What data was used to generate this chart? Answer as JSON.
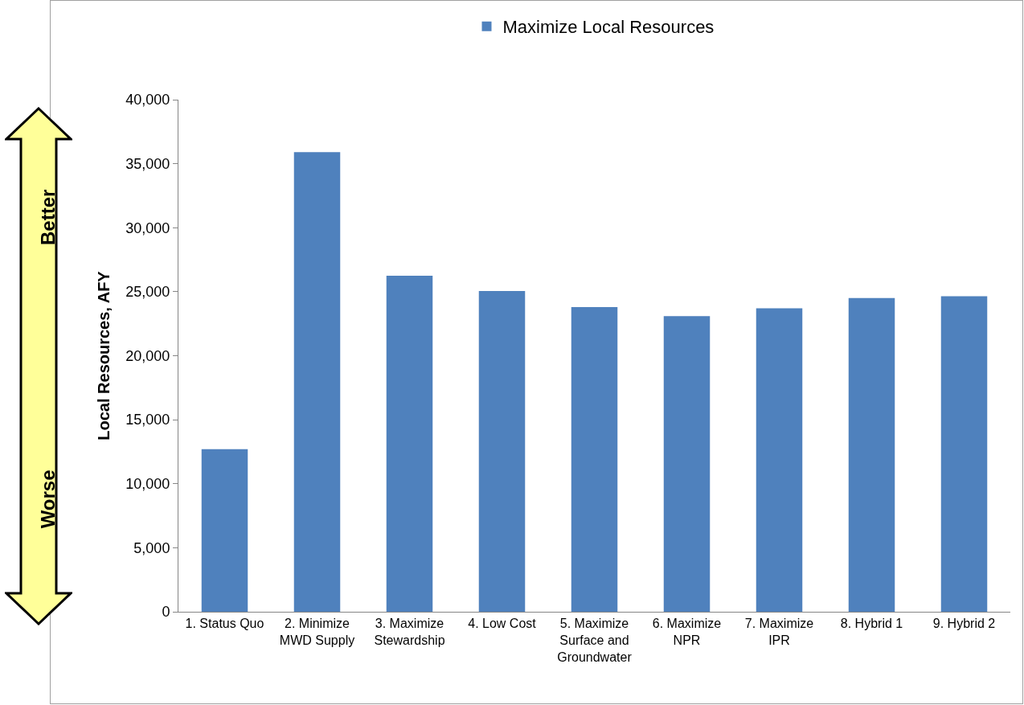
{
  "chart_data": {
    "type": "bar",
    "categories": [
      "1. Status Quo",
      "2. Minimize MWD Supply",
      "3. Maximize Stewardship",
      "4. Low Cost",
      "5. Maximize Surface and Groundwater",
      "6. Maximize NPR",
      "7. Maximize IPR",
      "8. Hybrid 1",
      "9. Hybrid 2"
    ],
    "series": [
      {
        "name": "Maximize Local Resources",
        "color": "#4f81bd",
        "values": [
          12700,
          35900,
          26250,
          25050,
          23800,
          23100,
          23700,
          24500,
          24650
        ]
      }
    ],
    "ylabel": "Local Resources, AFY",
    "ylim": [
      0,
      40000
    ],
    "yticks": [
      {
        "value": 0,
        "label": "0"
      },
      {
        "value": 5000,
        "label": "5,000"
      },
      {
        "value": 10000,
        "label": "10,000"
      },
      {
        "value": 15000,
        "label": "15,000"
      },
      {
        "value": 20000,
        "label": "20,000"
      },
      {
        "value": 25000,
        "label": "25,000"
      },
      {
        "value": 30000,
        "label": "30,000"
      },
      {
        "value": 35000,
        "label": "35,000"
      },
      {
        "value": 40000,
        "label": "40,000"
      }
    ],
    "annotations": [
      "Better",
      "Worse"
    ],
    "grid": false,
    "legend": "top"
  }
}
